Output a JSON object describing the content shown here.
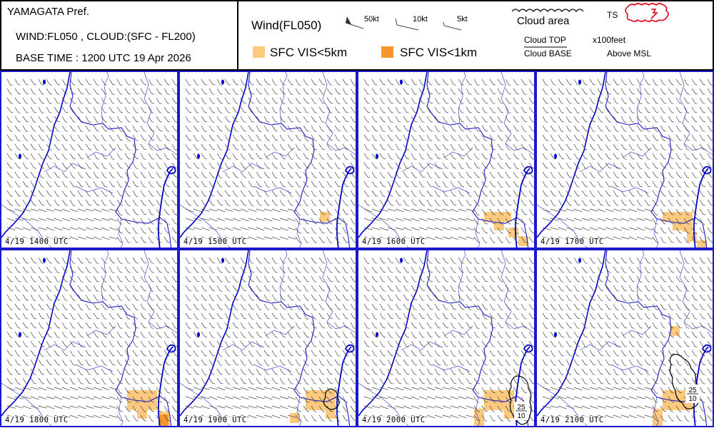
{
  "header": {
    "region": "YAMAGATA Pref.",
    "levels": "WIND:FL050 , CLOUD:(SFC - FL200)",
    "base_time": "BASE TIME : 1200 UTC 19 Apr 2026"
  },
  "legend": {
    "wind_title": "Wind(FL050)",
    "barb_50": "50kt",
    "barb_10": "10kt",
    "barb_5": "5kt",
    "cloud_area": "Cloud area",
    "cloud_top": "Cloud TOP",
    "cloud_base": "Cloud BASE",
    "unit": "x100feet",
    "above": "Above MSL",
    "ts": "TS",
    "vis5": "SFC VIS<5km",
    "vis1": "SFC VIS<1km",
    "colors": {
      "vis5": "#fdc97e",
      "vis1": "#f7962d",
      "border": "#1a1acc",
      "coast": "#0000cc",
      "ts": "#e0001a"
    }
  },
  "panels": [
    {
      "label": "4/19  1400 UTC"
    },
    {
      "label": "4/19  1500 UTC"
    },
    {
      "label": "4/19  1600 UTC"
    },
    {
      "label": "4/19  1700 UTC"
    },
    {
      "label": "4/19  1800 UTC"
    },
    {
      "label": "4/19  1900 UTC"
    },
    {
      "label": "4/19  2000 UTC",
      "cloud_top": "25",
      "cloud_base": "10"
    },
    {
      "label": "4/19  2100 UTC",
      "cloud_top": "25",
      "cloud_base": "10"
    }
  ]
}
